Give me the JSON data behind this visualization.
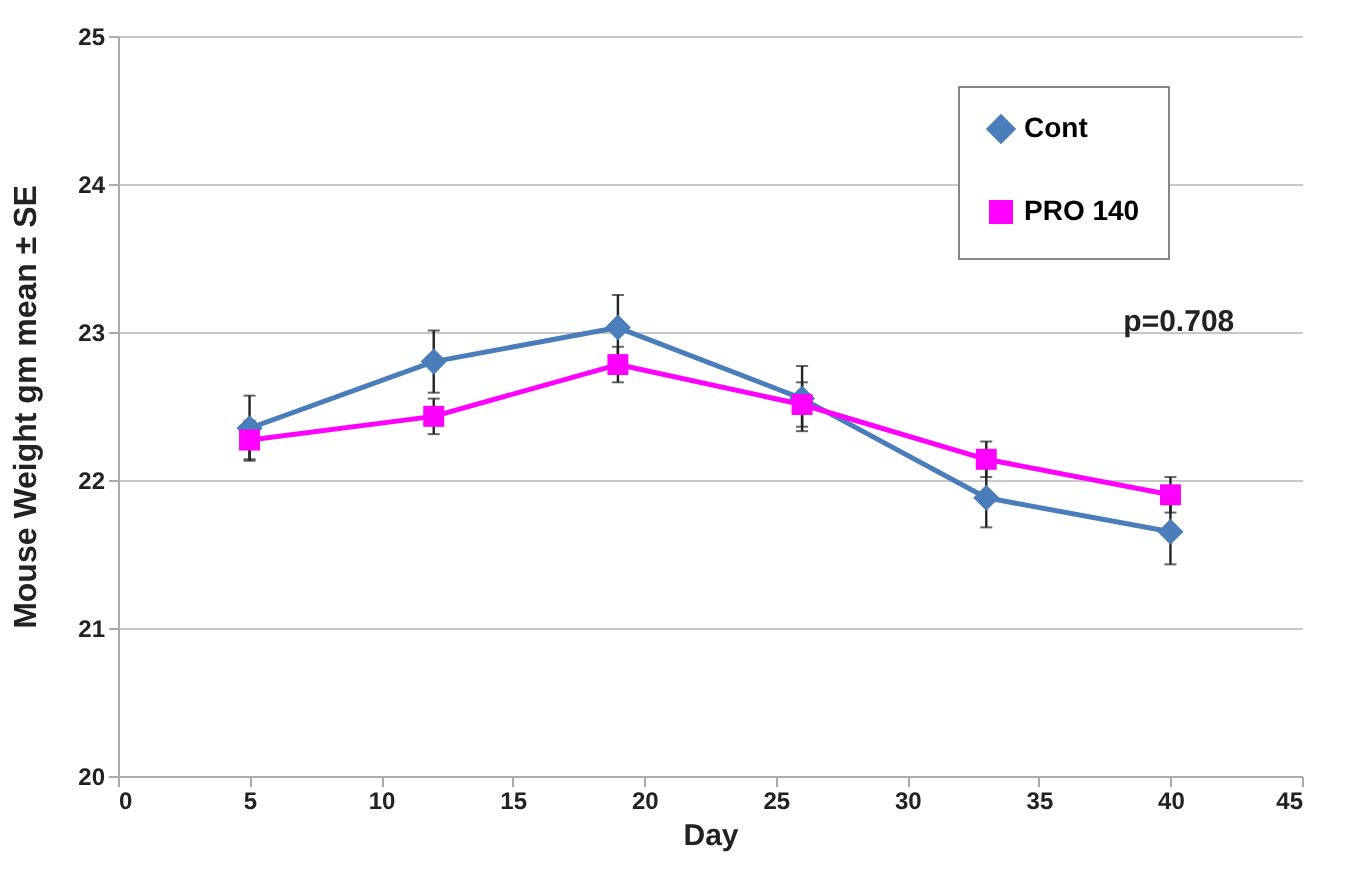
{
  "chart_data": {
    "type": "line",
    "xlabel": "Day",
    "ylabel": "Mouse Weight   gm  mean  ± SE",
    "x": [
      5,
      12,
      19,
      26,
      33,
      40
    ],
    "series": [
      {
        "name": "Cont",
        "color": "#4a7ebb",
        "marker": "diamond",
        "values": [
          22.35,
          22.8,
          23.03,
          22.55,
          21.88,
          21.65
        ],
        "errors": [
          0.22,
          0.21,
          0.22,
          0.22,
          0.2,
          0.22
        ]
      },
      {
        "name": "PRO 140",
        "color": "#ff00ff",
        "marker": "square",
        "values": [
          22.27,
          22.43,
          22.78,
          22.51,
          22.14,
          21.9
        ],
        "errors": [
          0.13,
          0.12,
          0.12,
          0.15,
          0.12,
          0.12
        ]
      }
    ],
    "xlim": [
      0,
      45
    ],
    "xticks": [
      0,
      5,
      10,
      15,
      20,
      25,
      30,
      35,
      40,
      45
    ],
    "ylim": [
      20,
      25
    ],
    "yticks": [
      20,
      21,
      22,
      23,
      24,
      25
    ],
    "grid": "y",
    "legend": "top right",
    "annotations": [
      "p=0.708"
    ]
  }
}
